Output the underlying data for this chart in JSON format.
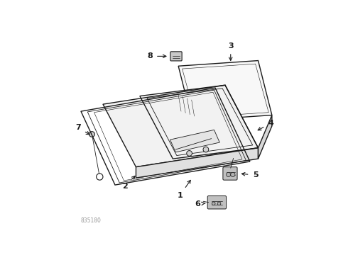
{
  "part_number": "835180",
  "background_color": "#ffffff",
  "line_color": "#1a1a1a",
  "lw_main": 1.0,
  "lw_thin": 0.6,
  "label_fontsize": 8.0
}
